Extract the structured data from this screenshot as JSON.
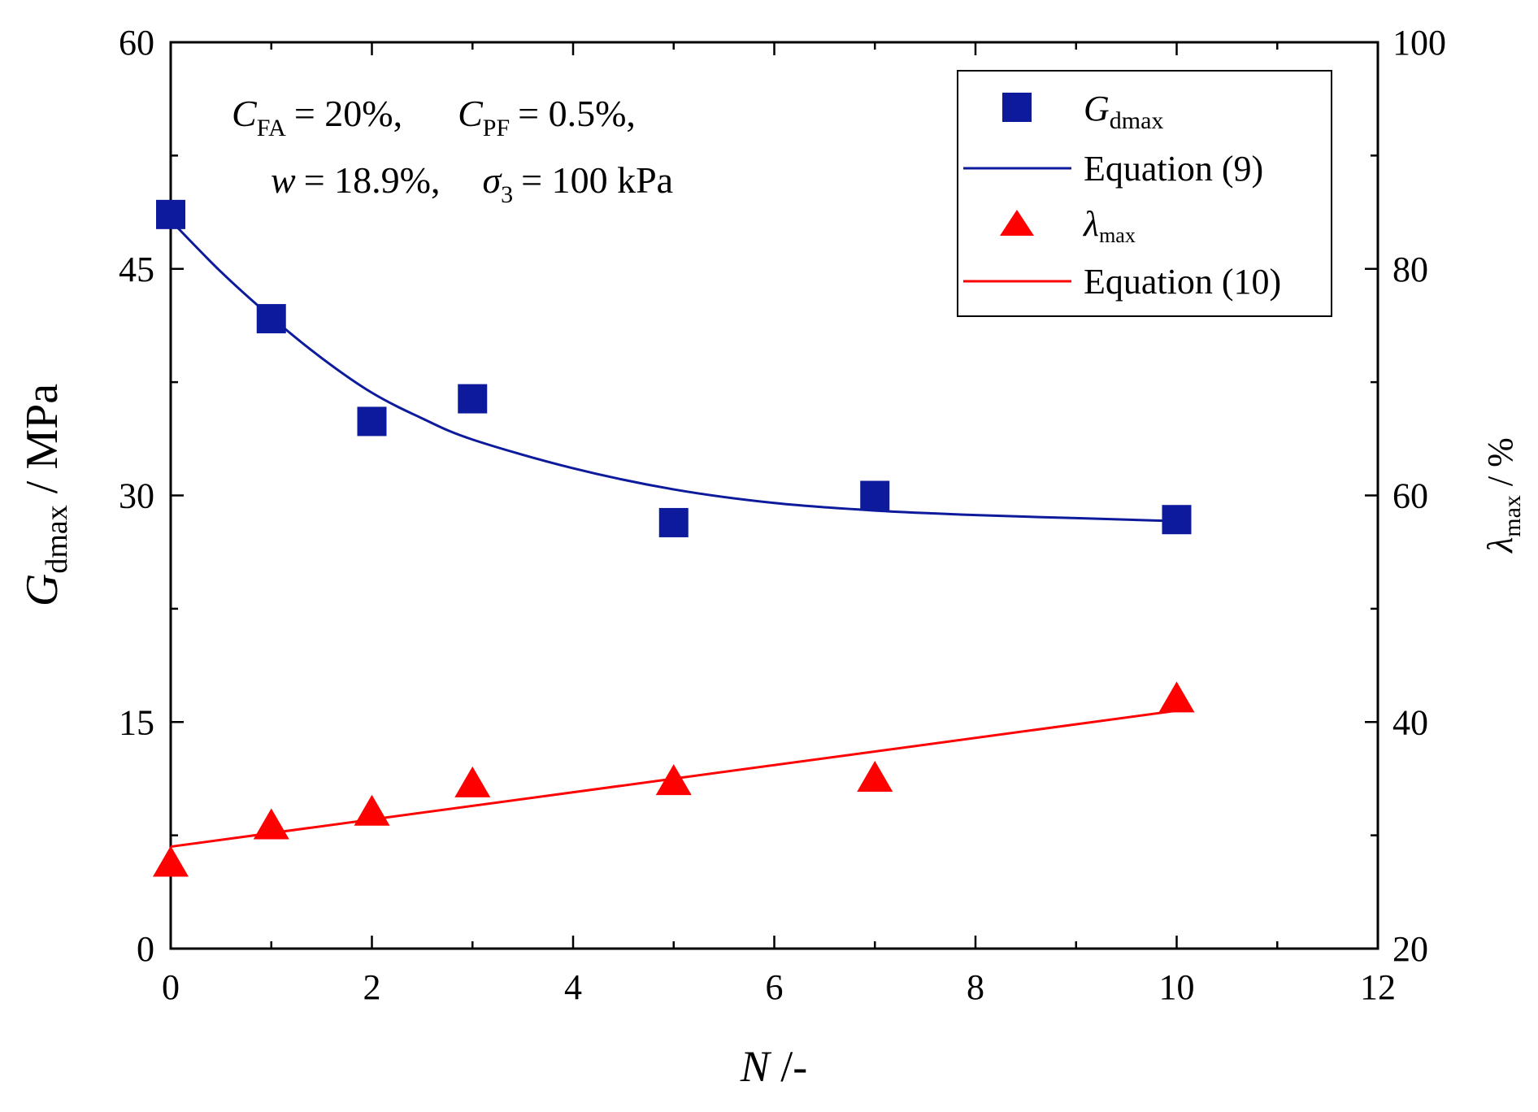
{
  "chart_data": {
    "type": "scatter",
    "x_axis": {
      "label_var": "N",
      "label_unit": " /-",
      "range": [
        0,
        12
      ],
      "ticks": [
        "0",
        "2",
        "4",
        "6",
        "8",
        "10",
        "12"
      ],
      "tick_values": [
        0,
        2,
        4,
        6,
        8,
        10,
        12
      ],
      "minor_step": 1
    },
    "y_left": {
      "label_var": "G",
      "label_sub": "dmax",
      "label_unit": " / MPa",
      "range": [
        0,
        60
      ],
      "ticks": [
        "0",
        "15",
        "30",
        "45",
        "60"
      ],
      "tick_values": [
        0,
        15,
        30,
        45,
        60
      ],
      "minor_step": 7.5
    },
    "y_right": {
      "label_var": "λ",
      "label_sub": "max",
      "label_unit": " / %",
      "range": [
        20,
        100
      ],
      "ticks": [
        "20",
        "40",
        "60",
        "80",
        "100"
      ],
      "tick_values": [
        20,
        40,
        60,
        80,
        100
      ],
      "minor_step": 10
    },
    "series": [
      {
        "name": "Gdmax",
        "legend_var": "G",
        "legend_sub": "dmax",
        "marker": "square",
        "axis": "left",
        "color": "#0d1a9c",
        "x": [
          0,
          1,
          2,
          3,
          5,
          7,
          10
        ],
        "y": [
          48.6,
          41.7,
          34.9,
          36.4,
          28.2,
          30.0,
          28.4
        ]
      },
      {
        "name": "Equation (9)",
        "legend_label": "Equation (9)",
        "type": "line",
        "axis": "left",
        "color": "#0d1a9c",
        "x": [
          0,
          0.5,
          1,
          1.5,
          2,
          2.5,
          3,
          4,
          5,
          6,
          7,
          8,
          9,
          10
        ],
        "y": [
          48.2,
          44.8,
          41.8,
          39.1,
          36.8,
          35.1,
          33.7,
          31.8,
          30.4,
          29.5,
          29.0,
          28.7,
          28.5,
          28.3
        ]
      },
      {
        "name": "λmax",
        "legend_var": "λ",
        "legend_sub": "max",
        "marker": "triangle",
        "axis": "right",
        "color": "#ff0000",
        "x": [
          0,
          1,
          2,
          3,
          5,
          7,
          10
        ],
        "y": [
          27.5,
          30.8,
          32.0,
          34.5,
          34.7,
          35.0,
          42.0
        ]
      },
      {
        "name": "Equation (10)",
        "legend_label": "Equation (10)",
        "type": "line",
        "axis": "right",
        "color": "#ff0000",
        "x": [
          0,
          10
        ],
        "y": [
          29.0,
          41.0
        ]
      }
    ],
    "annotations": {
      "line1_c_fa": "= 20%,",
      "line1_c_pf": "= 0.5%,",
      "line2_w": "= 18.9%,",
      "line2_sigma": "= 100 kPa",
      "sym_c": "C",
      "sub_fa": "FA",
      "sub_pf": "PF",
      "sym_w": "w",
      "sym_sigma": "σ",
      "sub_3": "3"
    },
    "legend": {
      "position": "top-right"
    },
    "grid": false
  }
}
